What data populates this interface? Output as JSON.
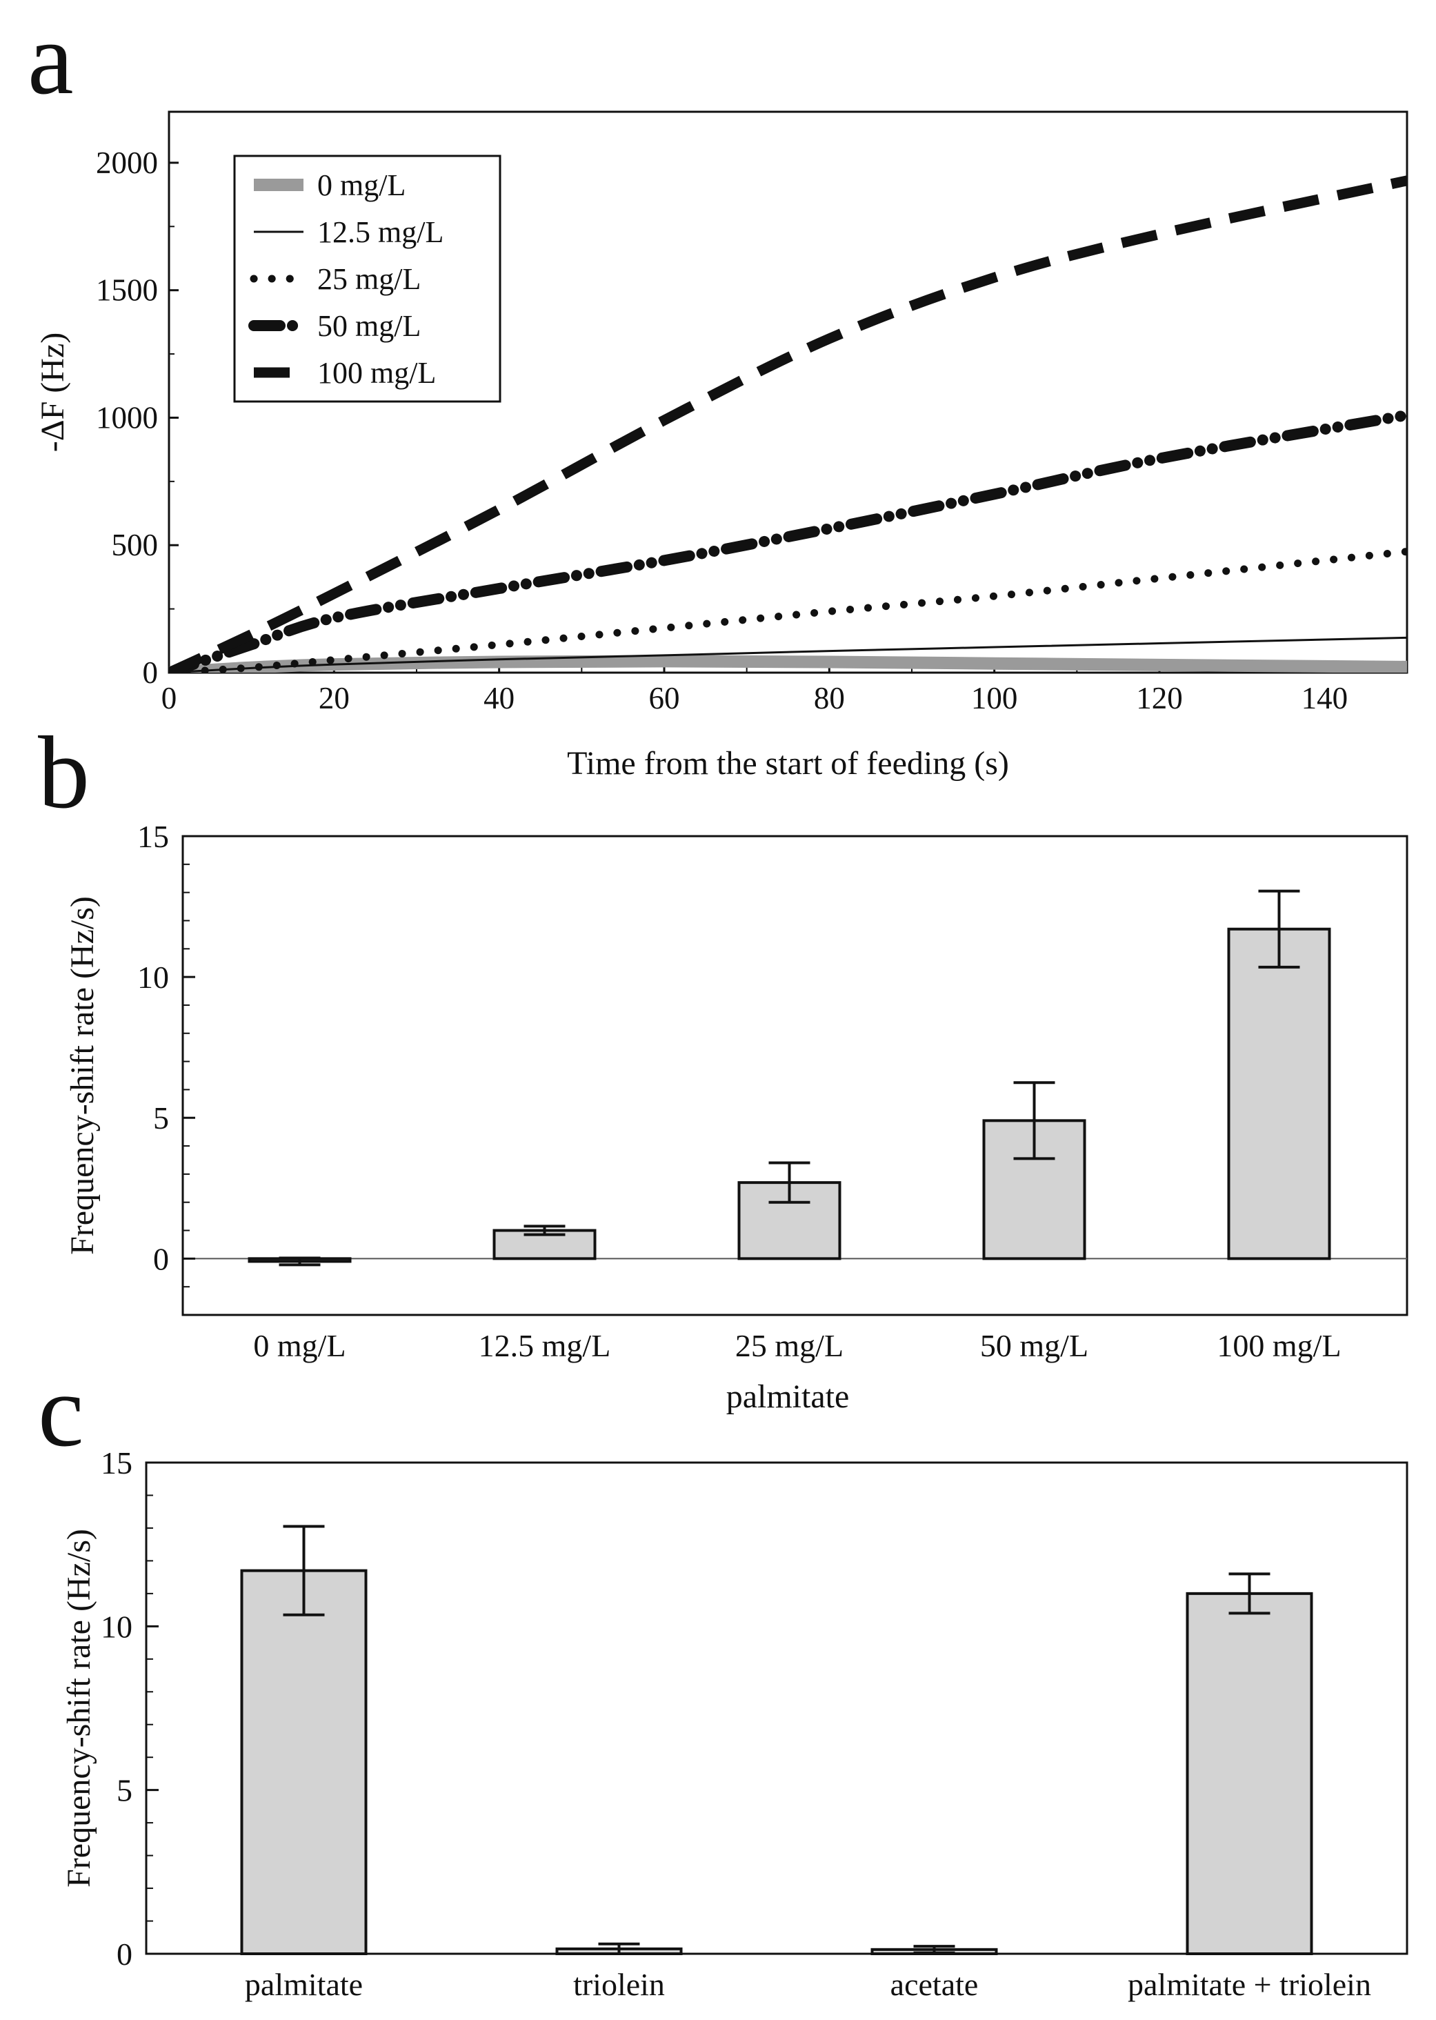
{
  "chart_data": [
    {
      "id": "a",
      "panel_label": "a",
      "type": "line",
      "xlabel": "Time from the start of feeding (s)",
      "ylabel": "-ΔF (Hz)",
      "xlim": [
        0,
        150
      ],
      "ylim": [
        0,
        2200
      ],
      "xticks": [
        0,
        20,
        40,
        60,
        80,
        100,
        120,
        140
      ],
      "xtick_labels": [
        "0",
        "20",
        "40",
        "60",
        "80",
        "100",
        "120",
        "140"
      ],
      "yticks": [
        0,
        500,
        1000,
        1500,
        2000
      ],
      "ytick_labels": [
        "0",
        "500",
        "1000",
        "1500",
        "2000"
      ],
      "legend_position": "top-left",
      "series": [
        {
          "name": "0 mg/L",
          "style": "thick-gray",
          "x": [
            0,
            10,
            20,
            40,
            60,
            80,
            100,
            120,
            150
          ],
          "y": [
            0,
            20,
            32,
            42,
            45,
            42,
            36,
            30,
            22
          ]
        },
        {
          "name": "12.5 mg/L",
          "style": "thin-solid",
          "x": [
            0,
            10,
            20,
            40,
            60,
            80,
            100,
            120,
            150
          ],
          "y": [
            0,
            18,
            32,
            52,
            68,
            85,
            100,
            115,
            137
          ]
        },
        {
          "name": "25 mg/L",
          "style": "dotted",
          "x": [
            0,
            10,
            20,
            40,
            60,
            80,
            100,
            120,
            150
          ],
          "y": [
            0,
            20,
            50,
            110,
            175,
            240,
            300,
            370,
            475
          ]
        },
        {
          "name": "50 mg/L",
          "style": "dash-dot",
          "x": [
            0,
            10,
            20,
            40,
            60,
            80,
            100,
            120,
            150
          ],
          "y": [
            0,
            110,
            215,
            330,
            440,
            565,
            700,
            840,
            1010
          ]
        },
        {
          "name": "100 mg/L",
          "style": "dashed",
          "x": [
            0,
            10,
            20,
            40,
            60,
            80,
            100,
            120,
            150
          ],
          "y": [
            0,
            150,
            310,
            640,
            990,
            1310,
            1550,
            1720,
            1930
          ]
        }
      ]
    },
    {
      "id": "b",
      "panel_label": "b",
      "type": "bar",
      "categories": [
        "0 mg/L",
        "12.5 mg/L",
        "25 mg/L",
        "50 mg/L",
        "100 mg/L"
      ],
      "values": [
        -0.1,
        1.0,
        2.7,
        4.9,
        11.7
      ],
      "errors": [
        0.12,
        0.15,
        0.7,
        1.35,
        1.35
      ],
      "xlabel": "palmitate",
      "ylabel": "Frequency-shift rate (Hz/s)",
      "ylim": [
        -2,
        15
      ],
      "yticks": [
        0,
        5,
        10,
        15
      ],
      "ytick_labels": [
        "0",
        "5",
        "10",
        "15"
      ],
      "zero_line": true
    },
    {
      "id": "c",
      "panel_label": "c",
      "type": "bar",
      "categories": [
        "palmitate",
        "triolein",
        "acetate",
        "palmitate + triolein"
      ],
      "values": [
        11.7,
        0.15,
        0.13,
        11.0
      ],
      "errors": [
        1.35,
        0.15,
        0.1,
        0.6
      ],
      "xlabel": "",
      "ylabel": "Frequency-shift rate (Hz/s)",
      "ylim": [
        0,
        15
      ],
      "yticks": [
        0,
        5,
        10,
        15
      ],
      "ytick_labels": [
        "0",
        "5",
        "10",
        "15"
      ],
      "zero_line": false
    }
  ],
  "colors": {
    "bar_fill": "#d3d3d3",
    "ink": "#111111",
    "gray_series": "#9a9a9a"
  }
}
